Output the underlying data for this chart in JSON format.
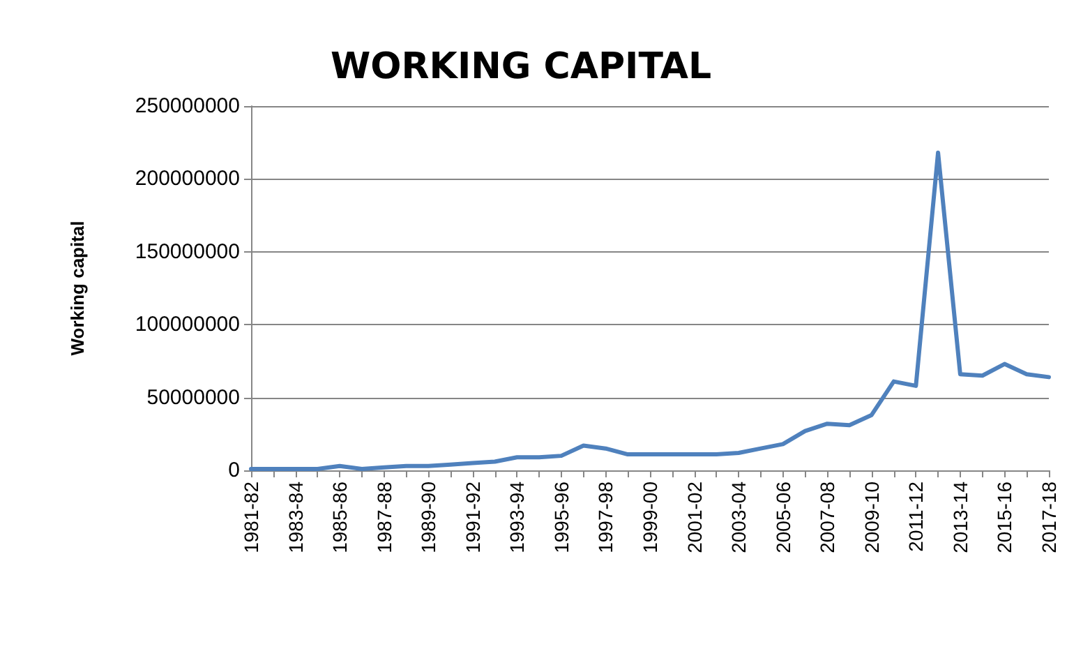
{
  "chart_data": {
    "type": "line",
    "title": "WORKING CAPITAL",
    "ylabel": "Working capital",
    "categories": [
      "1981-82",
      null,
      "1983-84",
      null,
      "1985-86",
      null,
      "1987-88",
      null,
      "1989-90",
      null,
      "1991-92",
      null,
      "1993-94",
      null,
      "1995-96",
      null,
      "1997-98",
      null,
      "1999-00",
      null,
      "2001-02",
      null,
      "2003-04",
      null,
      "2005-06",
      null,
      "2007-08",
      null,
      "2009-10",
      null,
      "2011-12",
      null,
      "2013-14",
      null,
      "2015-16",
      null,
      "2017-18"
    ],
    "series": [
      {
        "color": "#4f81bd",
        "values": [
          1000000,
          1000000,
          1000000,
          1000000,
          3000000,
          1000000,
          2000000,
          3000000,
          3000000,
          4000000,
          5000000,
          6000000,
          9000000,
          9000000,
          10000000,
          17000000,
          15000000,
          11000000,
          11000000,
          11000000,
          11000000,
          11000000,
          12000000,
          15000000,
          18000000,
          27000000,
          32000000,
          31000000,
          38000000,
          61000000,
          58000000,
          218000000,
          66000000,
          65000000,
          73000000,
          66000000,
          64000000
        ]
      }
    ],
    "ylim": [
      0,
      250000000
    ],
    "yticks": [
      0,
      50000000,
      100000000,
      150000000,
      200000000,
      250000000
    ],
    "grid": "y",
    "marker": "none",
    "line_style": "solid"
  }
}
